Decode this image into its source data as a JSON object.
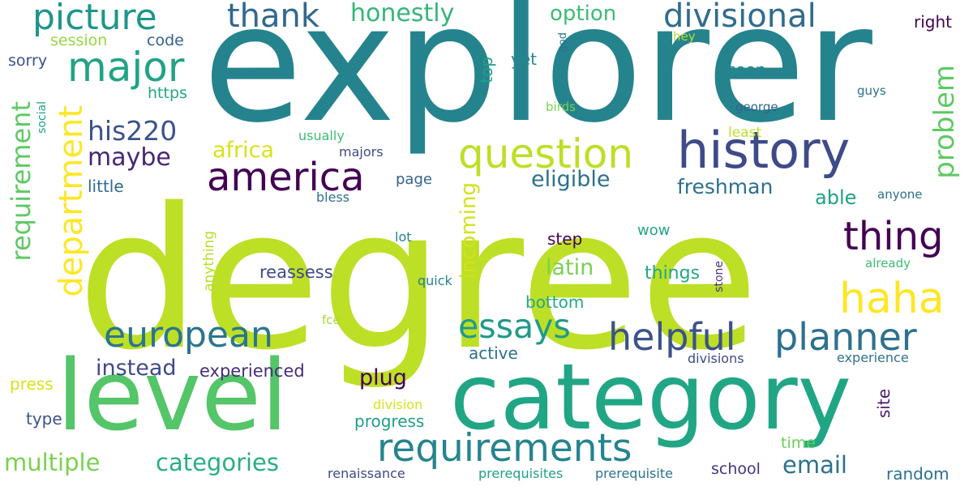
{
  "words": [
    {
      "text": "degree",
      "color": "#bddf26"
    },
    {
      "text": "explorer",
      "color": "#25838e"
    },
    {
      "text": "category",
      "color": "#21a685"
    },
    {
      "text": "level",
      "color": "#54c568"
    },
    {
      "text": "history",
      "color": "#3e4a89"
    },
    {
      "text": "question",
      "color": "#bddf26"
    },
    {
      "text": "requirements",
      "color": "#25848e"
    },
    {
      "text": "america",
      "color": "#440154"
    },
    {
      "text": "european",
      "color": "#2a768e"
    },
    {
      "text": "planner",
      "color": "#2c718e"
    },
    {
      "text": "helpful",
      "color": "#3b528b"
    },
    {
      "text": "thing",
      "color": "#440154"
    },
    {
      "text": "haha",
      "color": "#fde725"
    },
    {
      "text": "major",
      "color": "#20a386"
    },
    {
      "text": "picture",
      "color": "#1f958b"
    },
    {
      "text": "divisional",
      "color": "#2f6c8e"
    },
    {
      "text": "thank",
      "color": "#31688e"
    },
    {
      "text": "essays",
      "color": "#1f9a8a"
    },
    {
      "text": "department",
      "color": "#fde725"
    },
    {
      "text": "requirement",
      "color": "#5ec962"
    },
    {
      "text": "problem",
      "color": "#5ec962"
    },
    {
      "text": "his220",
      "color": "#3b528b"
    },
    {
      "text": "maybe",
      "color": "#482677"
    },
    {
      "text": "honestly",
      "color": "#35b779"
    },
    {
      "text": "africa",
      "color": "#d8e219"
    },
    {
      "text": "eligible",
      "color": "#2d708e"
    },
    {
      "text": "freshman",
      "color": "#2d708e"
    },
    {
      "text": "option",
      "color": "#3dbc74"
    },
    {
      "text": "instead",
      "color": "#3e4a89"
    },
    {
      "text": "latin",
      "color": "#7ad151"
    },
    {
      "text": "incoming",
      "color": "#d2e21b"
    },
    {
      "text": "multiple",
      "color": "#7ad151"
    },
    {
      "text": "categories",
      "color": "#29af7f"
    },
    {
      "text": "email",
      "color": "#2c728e"
    },
    {
      "text": "plug",
      "color": "#440154"
    },
    {
      "text": "able",
      "color": "#1fa187"
    },
    {
      "text": "experienced",
      "color": "#472d7b"
    },
    {
      "text": "progress",
      "color": "#1f9e89"
    },
    {
      "text": "reassess",
      "color": "#3e4989"
    },
    {
      "text": "things",
      "color": "#22a884"
    },
    {
      "text": "bottom",
      "color": "#22a884"
    },
    {
      "text": "active",
      "color": "#2d708e"
    },
    {
      "text": "step",
      "color": "#440154"
    },
    {
      "text": "site",
      "color": "#481a6c"
    },
    {
      "text": "top",
      "color": "#1fa187"
    },
    {
      "text": "page",
      "color": "#33628d"
    },
    {
      "text": "little",
      "color": "#2f6c8e"
    },
    {
      "text": "yet",
      "color": "#24868e"
    },
    {
      "text": "soon",
      "color": "#24878e"
    },
    {
      "text": "right",
      "color": "#440154"
    },
    {
      "text": "random",
      "color": "#2c728e"
    },
    {
      "text": "school",
      "color": "#46337f"
    },
    {
      "text": "time",
      "color": "#6ccd5a"
    },
    {
      "text": "type",
      "color": "#3b528b"
    },
    {
      "text": "press",
      "color": "#d8e219"
    },
    {
      "text": "session",
      "color": "#95d840"
    },
    {
      "text": "code",
      "color": "#33638d"
    },
    {
      "text": "sorry",
      "color": "#3b528b"
    },
    {
      "text": "https",
      "color": "#22a884"
    },
    {
      "text": "social",
      "color": "#1fa187"
    },
    {
      "text": "anything",
      "color": "#b5de2b"
    },
    {
      "text": "usually",
      "color": "#3dbc74"
    },
    {
      "text": "majors",
      "color": "#3e4989"
    },
    {
      "text": "bless",
      "color": "#2c728e"
    },
    {
      "text": "lot",
      "color": "#25848e"
    },
    {
      "text": "quick",
      "color": "#26828e"
    },
    {
      "text": "wow",
      "color": "#22a884"
    },
    {
      "text": "fce",
      "color": "#a5db36"
    },
    {
      "text": "division",
      "color": "#d8e219"
    },
    {
      "text": "renaissance",
      "color": "#3e4989"
    },
    {
      "text": "prerequisites",
      "color": "#1fa187"
    },
    {
      "text": "prerequisite",
      "color": "#2c728e"
    },
    {
      "text": "divisions",
      "color": "#3e4989"
    },
    {
      "text": "experience",
      "color": "#2c728e"
    },
    {
      "text": "stone",
      "color": "#46337f"
    },
    {
      "text": "already",
      "color": "#3dbc74"
    },
    {
      "text": "anyone",
      "color": "#2c728e"
    },
    {
      "text": "least",
      "color": "#bddf26"
    },
    {
      "text": "george",
      "color": "#33638d"
    },
    {
      "text": "guys",
      "color": "#2c728e"
    },
    {
      "text": "birds",
      "color": "#7ad151"
    },
    {
      "text": "hey",
      "color": "#b5de2b"
    },
    {
      "text": "god",
      "color": "#2c728e"
    }
  ]
}
